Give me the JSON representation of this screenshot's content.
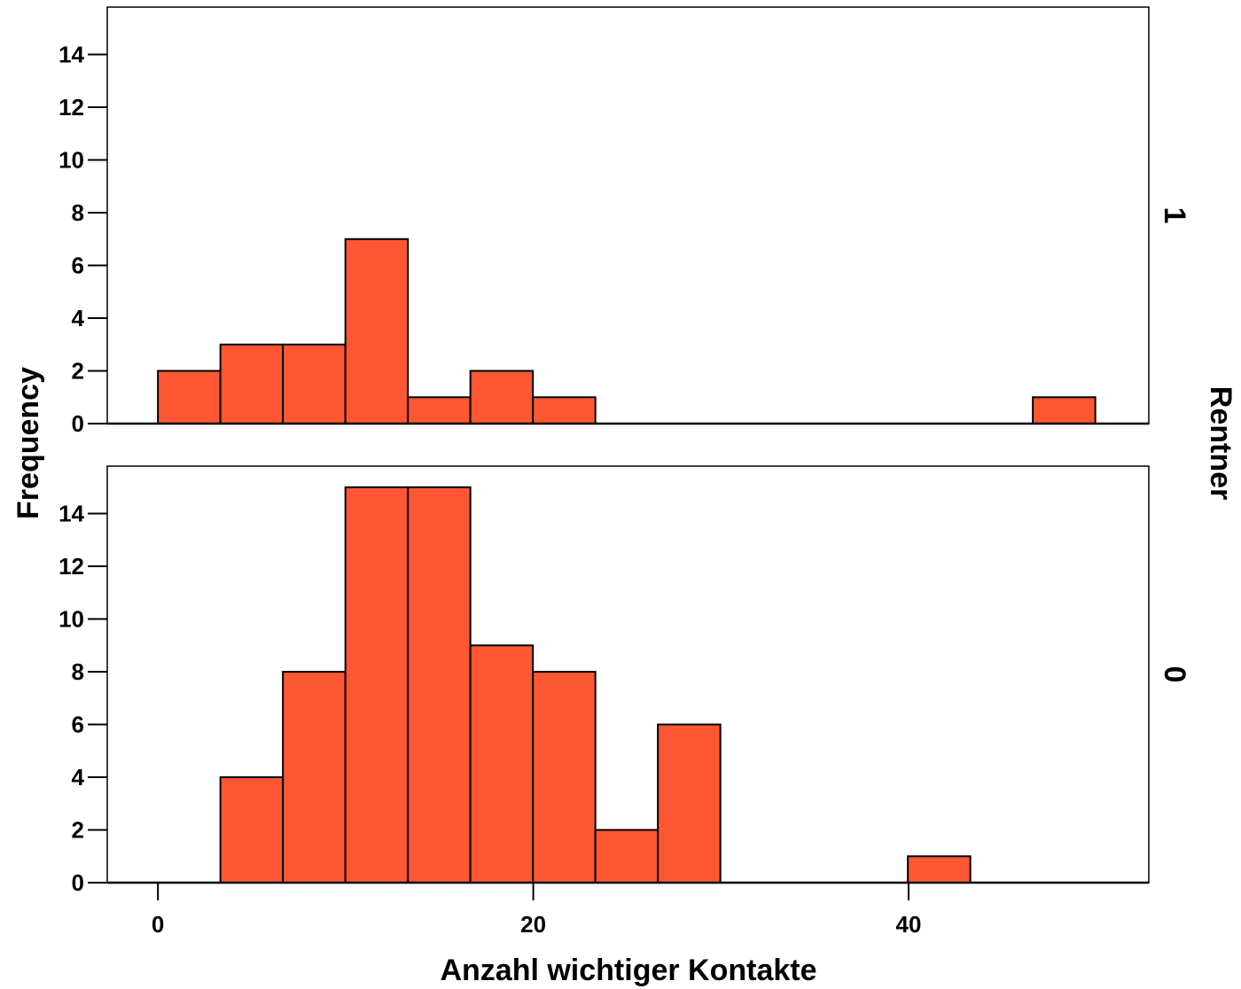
{
  "chart_data": {
    "type": "bar",
    "subtype": "histogram-panel",
    "xlabel": "Anzahl wichtiger Kontakte",
    "ylabel": "Frequency",
    "panel_variable": "Rentner",
    "bin_width": 3.33,
    "x_range": [
      -2.7,
      52.8
    ],
    "x_ticks": [
      0,
      20,
      40
    ],
    "ylim": [
      0,
      15.8
    ],
    "y_ticks": [
      0,
      2,
      4,
      6,
      8,
      10,
      12,
      14
    ],
    "bar_color": "#FF5733",
    "panels": [
      {
        "label": "1",
        "bins": [
          {
            "start": 0.0,
            "value": 2
          },
          {
            "start": 3.33,
            "value": 3
          },
          {
            "start": 6.66,
            "value": 3
          },
          {
            "start": 9.99,
            "value": 7
          },
          {
            "start": 13.32,
            "value": 1
          },
          {
            "start": 16.65,
            "value": 2
          },
          {
            "start": 19.98,
            "value": 1
          },
          {
            "start": 46.62,
            "value": 1
          }
        ]
      },
      {
        "label": "0",
        "bins": [
          {
            "start": 3.33,
            "value": 4
          },
          {
            "start": 6.66,
            "value": 8
          },
          {
            "start": 9.99,
            "value": 15
          },
          {
            "start": 13.32,
            "value": 15
          },
          {
            "start": 16.65,
            "value": 9
          },
          {
            "start": 19.98,
            "value": 8
          },
          {
            "start": 23.31,
            "value": 2
          },
          {
            "start": 26.64,
            "value": 6
          },
          {
            "start": 39.96,
            "value": 1
          }
        ]
      }
    ]
  }
}
